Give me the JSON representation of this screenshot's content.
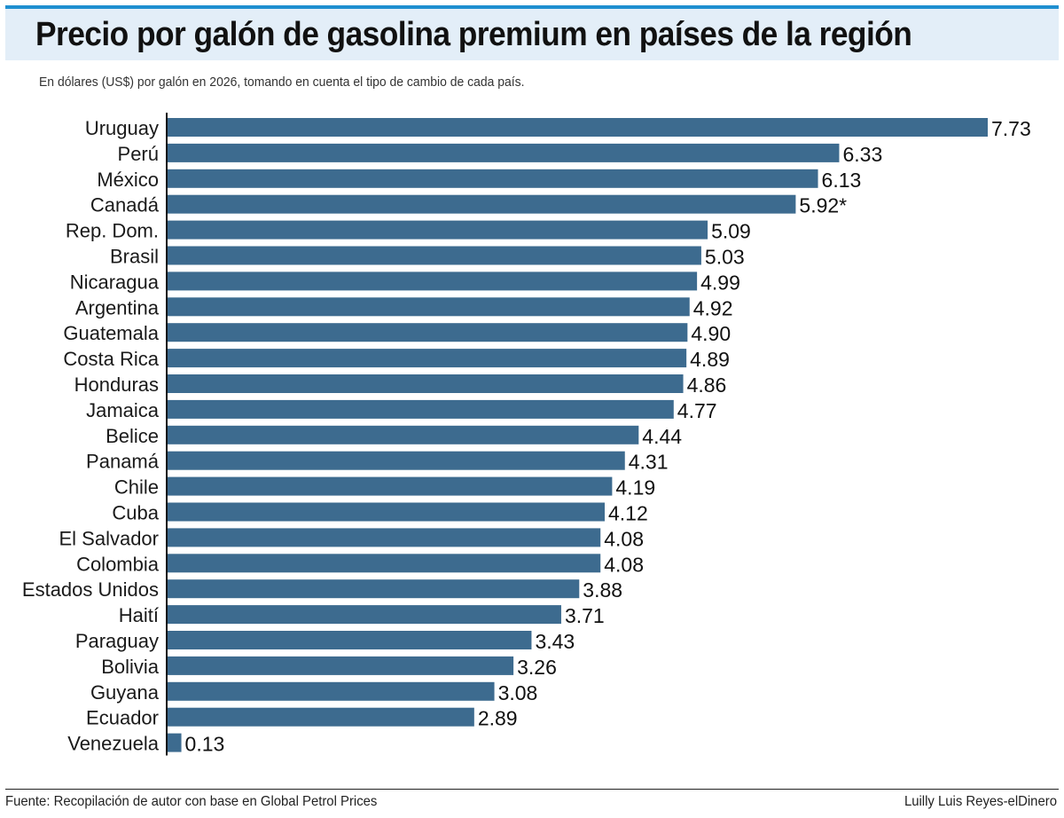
{
  "chart_data": {
    "type": "bar",
    "orientation": "horizontal",
    "title": "Precio por galón de gasolina premium en países de la región",
    "subtitle": "En dólares (US$) por galón en 2026, tomando en cuenta el tipo de cambio de cada país.",
    "categories": [
      "Uruguay",
      "Perú",
      "México",
      "Canadá",
      "Rep. Dom.",
      "Brasil",
      "Nicaragua",
      "Argentina",
      "Guatemala",
      "Costa Rica",
      "Honduras",
      "Jamaica",
      "Belice",
      "Panamá",
      "Chile",
      "Cuba",
      "El Salvador",
      "Colombia",
      "Estados Unidos",
      "Haití",
      "Paraguay",
      "Bolivia",
      "Guyana",
      "Ecuador",
      "Venezuela"
    ],
    "values": [
      7.73,
      6.33,
      6.13,
      5.92,
      5.09,
      5.03,
      4.99,
      4.92,
      4.9,
      4.89,
      4.86,
      4.77,
      4.44,
      4.31,
      4.19,
      4.12,
      4.08,
      4.08,
      3.88,
      3.71,
      3.43,
      3.26,
      3.08,
      2.89,
      0.13
    ],
    "value_labels": [
      "7.73",
      "6.33",
      "6.13",
      "5.92*",
      "5.09",
      "5.03",
      "4.99",
      "4.92",
      "4.90",
      "4.89",
      "4.86",
      "4.77",
      "4.44",
      "4.31",
      "4.19",
      "4.12",
      "4.08",
      "4.08",
      "3.88",
      "3.71",
      "3.43",
      "3.26",
      "3.08",
      "2.89",
      "0.13"
    ],
    "bar_color": "#3d6b8f",
    "xlim": [
      0,
      7.73
    ]
  },
  "footer": {
    "source": "Fuente: Recopilación de autor con base en Global Petrol Prices",
    "credit": "Luilly Luis Reyes-elDinero"
  },
  "colors": {
    "title_band": "#e3eef8",
    "title_rule": "#1f8fd0"
  }
}
